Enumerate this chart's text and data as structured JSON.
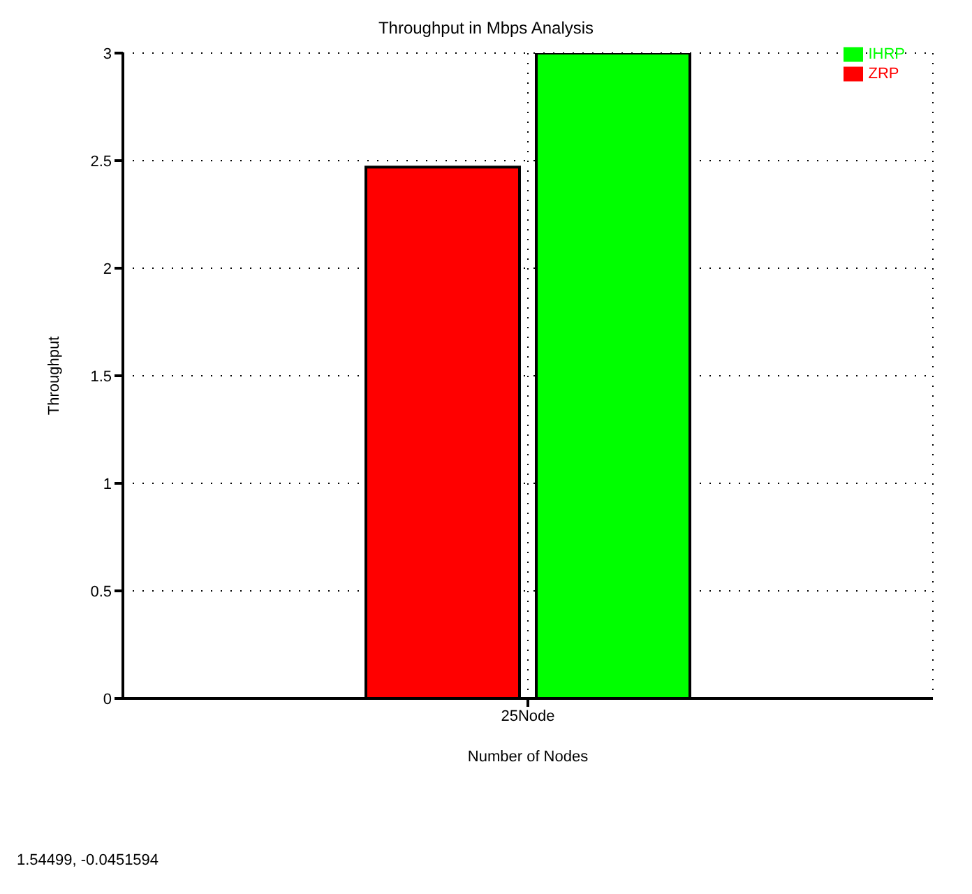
{
  "chart_data": {
    "type": "bar",
    "title": "Throughput in Mbps Analysis",
    "xlabel": "Number of Nodes",
    "ylabel": "Throughput",
    "categories": [
      "25Node"
    ],
    "series": [
      {
        "name": "ZRP",
        "color": "#ff0000",
        "values": [
          2.47
        ]
      },
      {
        "name": "IHRP",
        "color": "#00ff00",
        "values": [
          3
        ]
      }
    ],
    "ylim": [
      0,
      3
    ],
    "yticks": [
      0,
      0.5,
      1,
      1.5,
      2,
      2.5,
      3
    ],
    "grid": true,
    "legend": "top right",
    "annotations": [
      "1.54499, -0.0451594"
    ]
  }
}
